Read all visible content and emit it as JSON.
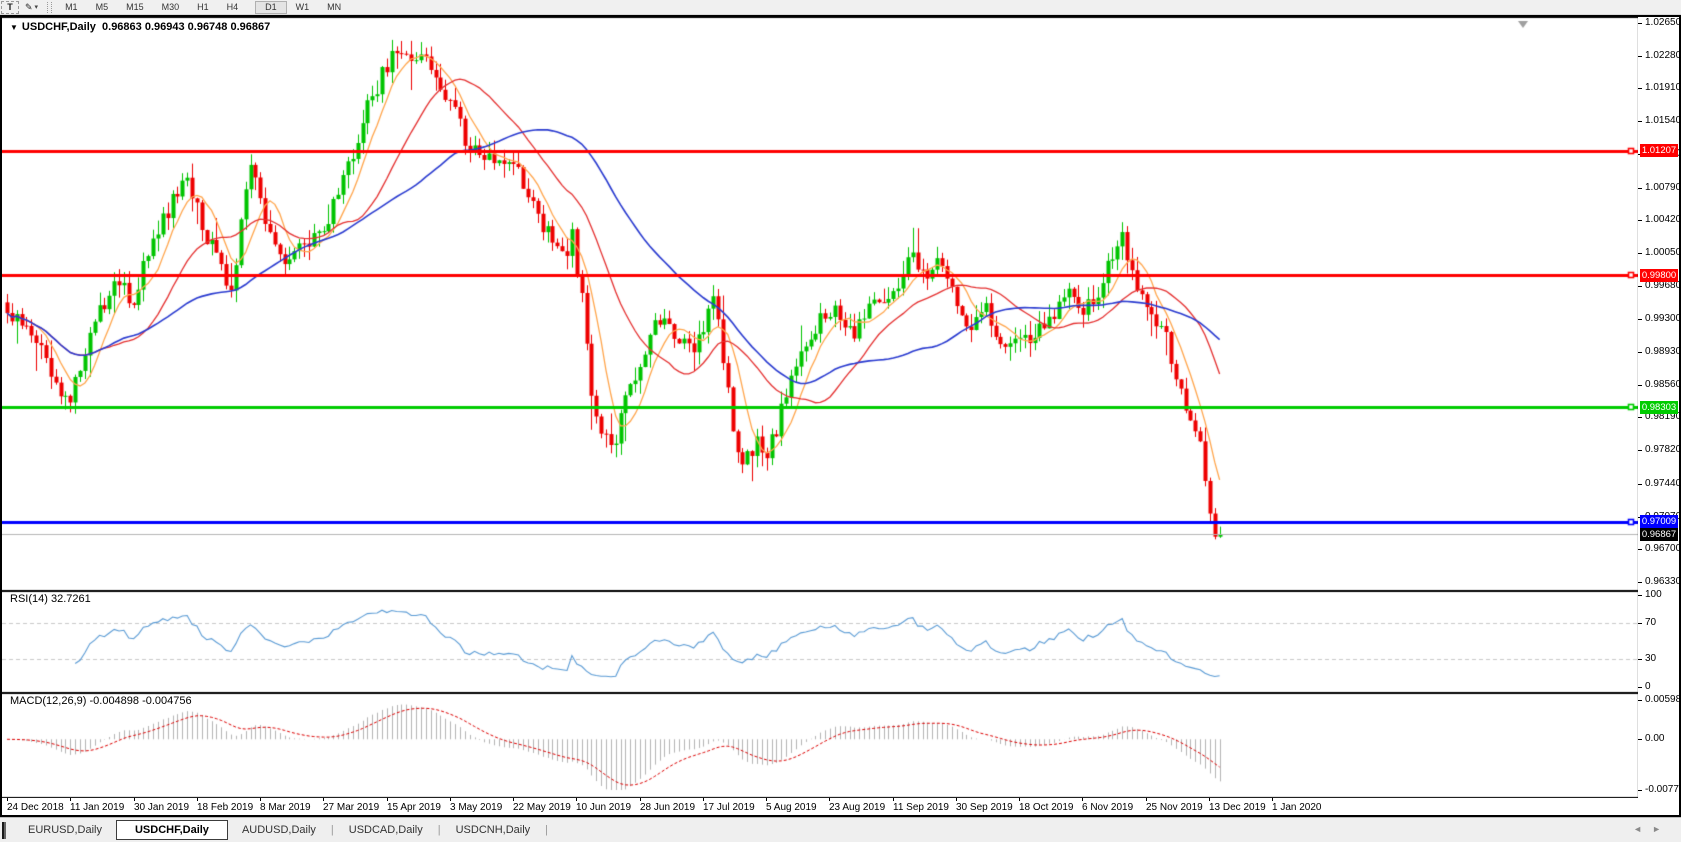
{
  "toolbar": {
    "text_tool_label": "T",
    "pen_tool_glyph": "✎",
    "dropdown_caret": "▾",
    "timeframe_groups": [
      [
        "M1",
        "M5",
        "M15",
        "M30",
        "H1",
        "H4"
      ],
      [
        "D1",
        "W1",
        "MN"
      ]
    ],
    "active_timeframe": "D1"
  },
  "chart": {
    "header": {
      "dropdown_glyph": "▼",
      "symbol": "USDCHF,Daily",
      "ohlc": "0.96863 0.96943 0.96748 0.96867"
    },
    "rsi_title": {
      "label": "RSI(14)",
      "value": "32.7261"
    },
    "macd_title": {
      "label": "MACD(12,26,9)",
      "values": "-0.004898 -0.004756"
    }
  },
  "price_axis": {
    "ticks": [
      "1.02650",
      "1.02280",
      "1.01910",
      "1.01540",
      "1.01170",
      "1.00790",
      "1.00420",
      "1.00050",
      "0.99680",
      "0.99300",
      "0.98930",
      "0.98560",
      "0.98190",
      "0.97820",
      "0.97440",
      "0.97070",
      "0.96700",
      "0.96330"
    ]
  },
  "rsi_axis": {
    "ticks": [
      "100",
      "70",
      "30",
      "0"
    ]
  },
  "macd_axis": {
    "ticks": [
      "0.005986",
      "0.00",
      "-0.00773"
    ]
  },
  "date_axis": [
    "24 Dec 2018",
    "11 Jan 2019",
    "30 Jan 2019",
    "18 Feb 2019",
    "8 Mar 2019",
    "27 Mar 2019",
    "15 Apr 2019",
    "3 May 2019",
    "22 May 2019",
    "10 Jun 2019",
    "28 Jun 2019",
    "17 Jul 2019",
    "5 Aug 2019",
    "23 Aug 2019",
    "11 Sep 2019",
    "30 Sep 2019",
    "18 Oct 2019",
    "6 Nov 2019",
    "25 Nov 2019",
    "13 Dec 2019",
    "1 Jan 2020"
  ],
  "tabs": {
    "items": [
      "EURUSD,Daily",
      "USDCHF,Daily",
      "AUDUSD,Daily",
      "USDCAD,Daily",
      "USDCNH,Daily"
    ],
    "active_index": 1,
    "scroll_left_glyph": "◄",
    "scroll_right_glyph": "►"
  },
  "colors": {
    "up_candle": "#00c400",
    "down_candle": "#ee0000",
    "ma_fast": "#ffa64d",
    "ma_mid": "#e53030",
    "ma_slow": "#2a3bd0",
    "rsi_line": "#5a9bd5",
    "macd_hist": "#b4b4b4",
    "macd_signal": "#dd0000",
    "level_red": "#ff0000",
    "level_green": "#00cc00",
    "level_blue": "#0000ff",
    "current_price_line": "#b5b5b5",
    "current_price_label_bg": "#000000"
  },
  "chart_data": {
    "type": "candlestick",
    "symbol": "USDCHF",
    "timeframe": "Daily",
    "title": "USDCHF,Daily",
    "ohlc_display": {
      "open": 0.96863,
      "high": 0.96943,
      "low": 0.96748,
      "close": 0.96867
    },
    "price_range": {
      "top": 1.02718,
      "bottom": 0.96239
    },
    "price_ticks": [
      1.0265,
      1.0228,
      1.0191,
      1.0154,
      1.0117,
      1.0079,
      1.0042,
      1.0005,
      0.9968,
      0.993,
      0.9893,
      0.9856,
      0.9819,
      0.9782,
      0.9744,
      0.9707,
      0.967,
      0.9633
    ],
    "levels": [
      {
        "price": 1.01207,
        "color": "#ff0000",
        "label": "1.01207"
      },
      {
        "price": 0.998,
        "color": "#ff0000",
        "label": "0.99800"
      },
      {
        "price": 0.98303,
        "color": "#00cc00",
        "label": "0.98303"
      },
      {
        "price": 0.97009,
        "color": "#0000ff",
        "label": "0.97009"
      }
    ],
    "current_price": {
      "value": 0.96867,
      "label": "0.96867"
    },
    "candle_count": 250,
    "close_path": [
      [
        0,
        0.9941
      ],
      [
        5,
        0.9918
      ],
      [
        10,
        0.985
      ],
      [
        13,
        0.9839
      ],
      [
        17,
        0.9918
      ],
      [
        22,
        0.9974
      ],
      [
        26,
        0.9952
      ],
      [
        30,
        1.002
      ],
      [
        34,
        1.0065
      ],
      [
        37,
        1.0099
      ],
      [
        40,
        1.0031
      ],
      [
        43,
        1.0008
      ],
      [
        46,
        0.9963
      ],
      [
        50,
        1.011
      ],
      [
        53,
        1.0031
      ],
      [
        56,
        0.9997
      ],
      [
        61,
        1.0014
      ],
      [
        65,
        1.0031
      ],
      [
        69,
        1.0088
      ],
      [
        73,
        1.0155
      ],
      [
        77,
        1.0206
      ],
      [
        80,
        1.0235
      ],
      [
        83,
        1.0212
      ],
      [
        86,
        1.0223
      ],
      [
        89,
        1.0189
      ],
      [
        92,
        1.0161
      ],
      [
        95,
        1.0121
      ],
      [
        99,
        1.011
      ],
      [
        102,
        1.0115
      ],
      [
        105,
        1.0099
      ],
      [
        108,
        1.0065
      ],
      [
        111,
        1.0025
      ],
      [
        114,
        0.9997
      ],
      [
        116,
        1.0025
      ],
      [
        118,
        0.9952
      ],
      [
        120,
        0.9839
      ],
      [
        122,
        0.9805
      ],
      [
        125,
        0.9794
      ],
      [
        127,
        0.9839
      ],
      [
        130,
        0.9884
      ],
      [
        133,
        0.9929
      ],
      [
        137,
        0.9918
      ],
      [
        140,
        0.9895
      ],
      [
        143,
        0.9918
      ],
      [
        145,
        0.9958
      ],
      [
        147,
        0.9884
      ],
      [
        149,
        0.9805
      ],
      [
        151,
        0.976
      ],
      [
        154,
        0.9794
      ],
      [
        156,
        0.9777
      ],
      [
        158,
        0.9805
      ],
      [
        161,
        0.9873
      ],
      [
        164,
        0.9907
      ],
      [
        167,
        0.9929
      ],
      [
        170,
        0.9941
      ],
      [
        174,
        0.9918
      ],
      [
        177,
        0.9941
      ],
      [
        180,
        0.9952
      ],
      [
        183,
        0.9969
      ],
      [
        186,
        1.0003
      ],
      [
        189,
        0.9974
      ],
      [
        192,
        0.9997
      ],
      [
        195,
        0.9952
      ],
      [
        198,
        0.9918
      ],
      [
        201,
        0.9941
      ],
      [
        204,
        0.9901
      ],
      [
        207,
        0.9918
      ],
      [
        210,
        0.9907
      ],
      [
        214,
        0.9929
      ],
      [
        217,
        0.9963
      ],
      [
        220,
        0.9941
      ],
      [
        223,
        0.9952
      ],
      [
        226,
        0.9986
      ],
      [
        229,
        1.002
      ],
      [
        232,
        0.9963
      ],
      [
        235,
        0.9941
      ],
      [
        238,
        0.9907
      ],
      [
        241,
        0.985
      ],
      [
        243,
        0.9816
      ],
      [
        245,
        0.9782
      ],
      [
        247,
        0.9714
      ],
      [
        248,
        0.968
      ],
      [
        249,
        0.96867
      ]
    ],
    "moving_averages": [
      {
        "period": 7,
        "color": "#ffa64d"
      },
      {
        "period": 21,
        "color": "#e53030"
      },
      {
        "period": 45,
        "color": "#2a3bd0"
      }
    ],
    "rsi": {
      "period": 14,
      "current": 32.7261,
      "scale": [
        100,
        70,
        30,
        0
      ],
      "dashed_levels": [
        70,
        30
      ]
    },
    "macd": {
      "params": [
        12,
        26,
        9
      ],
      "macd_current": -0.004898,
      "signal_current": -0.004756,
      "axis_max": 0.005986,
      "axis_zero": 0.0,
      "axis_min": -0.00773
    },
    "x_dates": [
      "24 Dec 2018",
      "11 Jan 2019",
      "30 Jan 2019",
      "18 Feb 2019",
      "8 Mar 2019",
      "27 Mar 2019",
      "15 Apr 2019",
      "3 May 2019",
      "22 May 2019",
      "10 Jun 2019",
      "28 Jun 2019",
      "17 Jul 2019",
      "5 Aug 2019",
      "23 Aug 2019",
      "11 Sep 2019",
      "30 Sep 2019",
      "18 Oct 2019",
      "6 Nov 2019",
      "25 Nov 2019",
      "13 Dec 2019",
      "1 Jan 2020"
    ],
    "legend_position": "none",
    "grid": "off"
  }
}
